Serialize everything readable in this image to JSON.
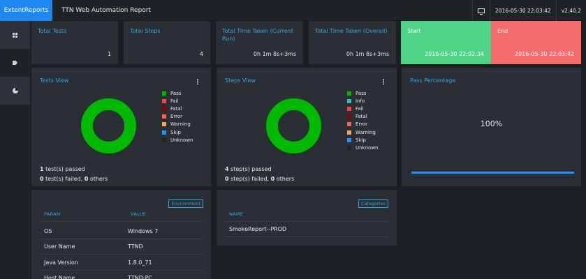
{
  "topbar": {
    "brand": "ExtentReports",
    "title": "TTN Web Automation Report",
    "datetime": "2016-05-30 22:03:42",
    "version": "v2.40.2"
  },
  "sidebar": {
    "items": [
      {
        "icon": "dashboard-grid-icon"
      },
      {
        "icon": "tag-icon"
      },
      {
        "icon": "pie-chart-icon"
      }
    ]
  },
  "stats": {
    "total_tests": {
      "label": "Total Tests",
      "value": "1"
    },
    "total_steps": {
      "label": "Total Steps",
      "value": "4"
    },
    "time_current": {
      "label": "Total Time Taken (Current Run)",
      "value": "0h 1m 8s+3ms"
    },
    "time_overall": {
      "label": "Total Time Taken (Overall)",
      "value": "0h 1m 8s+3ms"
    },
    "start": {
      "label": "Start",
      "value": "2016-05-30 22:02:34"
    },
    "end": {
      "label": "End",
      "value": "2016-05-30 22:03:42"
    }
  },
  "tests_view": {
    "title": "Tests View",
    "legend": [
      "Pass",
      "Fail",
      "Fatal",
      "Error",
      "Warning",
      "Skip",
      "Unknown"
    ],
    "passed_count": "1",
    "passed_text": " test(s) passed",
    "failed_count": "0",
    "failed_mid": " test(s) failed, ",
    "others_count": "0",
    "others_text": " others"
  },
  "steps_view": {
    "title": "Steps View",
    "legend": [
      "Pass",
      "Info",
      "Fail",
      "Fatal",
      "Error",
      "Warning",
      "Skip",
      "Unknown"
    ],
    "passed_count": "4",
    "passed_text": " step(s) passed",
    "failed_count": "0",
    "failed_mid": " step(s) failed, ",
    "others_count": "0",
    "others_text": " others"
  },
  "pass_percentage": {
    "title": "Pass Percentage",
    "value_text": "100%",
    "fraction": 1.0
  },
  "environment": {
    "badge": "Environment",
    "headers": [
      "PARAM",
      "VALUE"
    ],
    "rows": [
      {
        "param": "OS",
        "value": "Windows 7"
      },
      {
        "param": "User Name",
        "value": "TTND"
      },
      {
        "param": "Java Version",
        "value": "1.8.0_71"
      },
      {
        "param": "Host Name",
        "value": "TTND-PC"
      }
    ]
  },
  "categories": {
    "badge": "Categories",
    "header": "NAME",
    "rows": [
      {
        "name": "SmokeReport--PROD"
      }
    ]
  },
  "colors": {
    "pass": "#00b900",
    "info": "#3ab7c4",
    "fail": "#ff4040",
    "fatal": "#8b0000",
    "error": "#ff6347",
    "warning": "#f7a35c",
    "skip": "#1e90ff",
    "unknown": "#222222",
    "accent": "#3ba3de",
    "brand": "#1e87f0",
    "start_card": "#4ed387",
    "end_card": "#f56c6c"
  }
}
